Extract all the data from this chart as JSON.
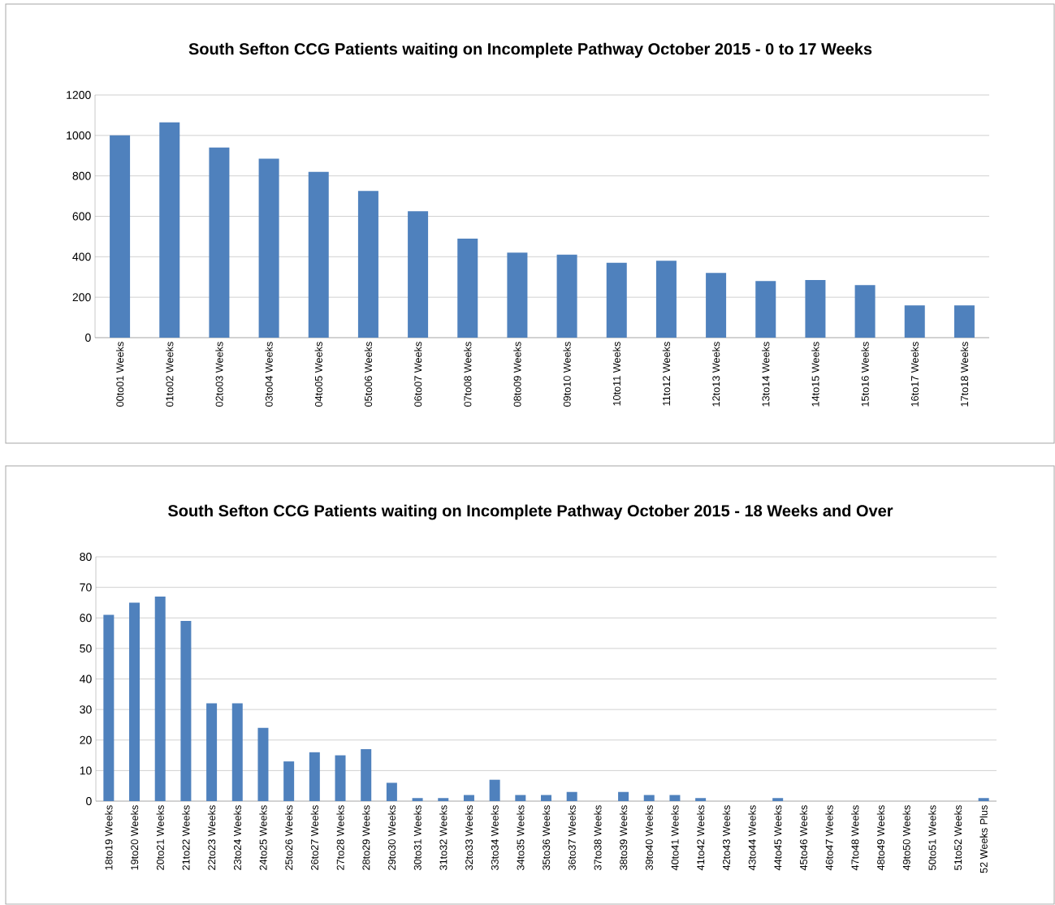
{
  "chart_data": [
    {
      "type": "bar",
      "title": "South Sefton CCG Patients waiting on Incomplete Pathway October 2015 - 0 to 17 Weeks",
      "categories": [
        "00to01 Weeks",
        "01to02 Weeks",
        "02to03 Weeks",
        "03to04 Weeks",
        "04to05 Weeks",
        "05to06 Weeks",
        "06to07 Weeks",
        "07to08 Weeks",
        "08to09 Weeks",
        "09to10 Weeks",
        "10to11 Weeks",
        "11to12 Weeks",
        "12to13 Weeks",
        "13to14 Weeks",
        "14to15 Weeks",
        "15to16 Weeks",
        "16to17 Weeks",
        "17to18 Weeks"
      ],
      "values": [
        1000,
        1065,
        940,
        885,
        820,
        725,
        625,
        490,
        420,
        410,
        370,
        380,
        320,
        280,
        285,
        260,
        160,
        160
      ],
      "color": "#4f81bd",
      "ylim": [
        0,
        1200
      ],
      "yticks": [
        0,
        200,
        400,
        600,
        800,
        1000,
        1200
      ],
      "grid": "y"
    },
    {
      "type": "bar",
      "title": "South Sefton CCG Patients waiting on Incomplete Pathway October 2015 - 18 Weeks and Over",
      "categories": [
        "18to19 Weeks",
        "19to20 Weeks",
        "20to21 Weeks",
        "21to22 Weeks",
        "22to23 Weeks",
        "23to24 Weeks",
        "24to25 Weeks",
        "25to26 Weeks",
        "26to27 Weeks",
        "27to28 Weeks",
        "28to29 Weeks",
        "29to30 Weeks",
        "30to31 Weeks",
        "31to32 Weeks",
        "32to33 Weeks",
        "33to34 Weeks",
        "34to35 Weeks",
        "35to36 Weeks",
        "36to37 Weeks",
        "37to38 Weeks",
        "38to39 Weeks",
        "39to40 Weeks",
        "40to41 Weeks",
        "41to42 Weeks",
        "42to43 Weeks",
        "43to44 Weeks",
        "44to45 Weeks",
        "45to46 Weeks",
        "46to47 Weeks",
        "47to48 Weeks",
        "48to49 Weeks",
        "49to50 Weeks",
        "50to51 Weeks",
        "51to52 Weeks",
        "52 Weeks Plus"
      ],
      "values": [
        61,
        65,
        67,
        59,
        32,
        32,
        24,
        13,
        16,
        15,
        17,
        6,
        1,
        1,
        2,
        7,
        2,
        2,
        3,
        0,
        3,
        2,
        2,
        1,
        0,
        0,
        1,
        0,
        0,
        0,
        0,
        0,
        0,
        0,
        1
      ],
      "color": "#4f81bd",
      "ylim": [
        0,
        80
      ],
      "yticks": [
        0,
        10,
        20,
        30,
        40,
        50,
        60,
        70,
        80
      ],
      "grid": "y"
    }
  ]
}
